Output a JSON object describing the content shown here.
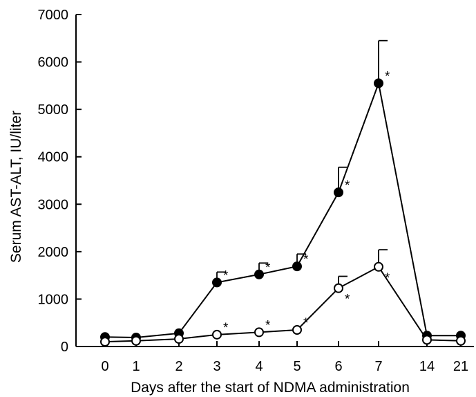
{
  "chart_data": {
    "type": "line",
    "title": "",
    "xlabel": "Days after the start of NDMA administration",
    "ylabel": "Serum AST-ALT, IU/liter",
    "categories": [
      "0",
      "1",
      "2",
      "3",
      "4",
      "5",
      "6",
      "7",
      "14",
      "21"
    ],
    "ylim": [
      0,
      7000
    ],
    "yticks": [
      0,
      1000,
      2000,
      3000,
      4000,
      5000,
      6000,
      7000
    ],
    "grid": false,
    "legend": "none",
    "significance_marker": "*",
    "series": [
      {
        "marker": "filled-circle",
        "values": [
          200,
          190,
          280,
          1350,
          1520,
          1690,
          3250,
          5550,
          230,
          230
        ],
        "error": [
          null,
          null,
          null,
          220,
          240,
          260,
          530,
          900,
          null,
          null
        ],
        "significant": [
          false,
          false,
          false,
          true,
          true,
          true,
          true,
          true,
          false,
          false
        ]
      },
      {
        "marker": "open-circle",
        "values": [
          100,
          120,
          160,
          250,
          300,
          350,
          1230,
          1680,
          140,
          120
        ],
        "error": [
          null,
          null,
          null,
          null,
          null,
          null,
          250,
          360,
          null,
          null
        ],
        "significant": [
          false,
          false,
          false,
          true,
          true,
          true,
          true,
          true,
          false,
          false
        ]
      }
    ]
  }
}
